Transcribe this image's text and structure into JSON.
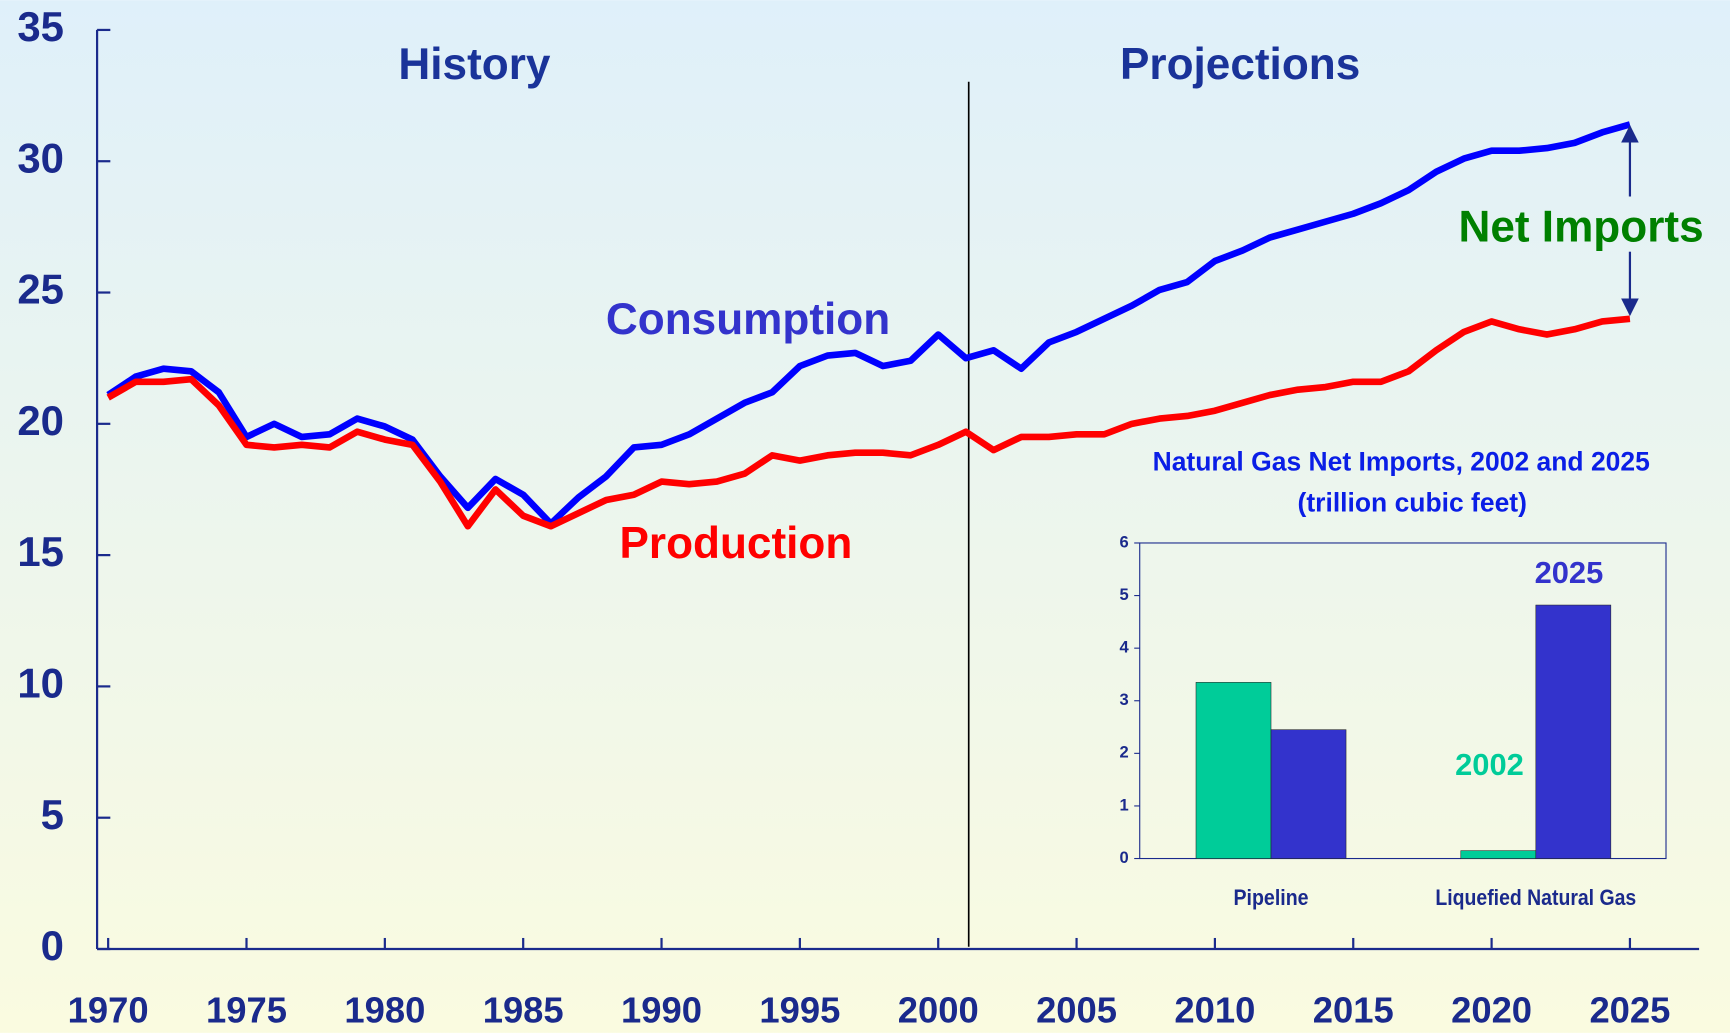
{
  "chart_data": [
    {
      "type": "line",
      "annotations": [
        "History",
        "Projections",
        "Consumption",
        "Production",
        "Net Imports"
      ],
      "x": [
        1970,
        1971,
        1972,
        1973,
        1974,
        1975,
        1976,
        1977,
        1978,
        1979,
        1980,
        1981,
        1982,
        1983,
        1984,
        1985,
        1986,
        1987,
        1988,
        1989,
        1990,
        1991,
        1992,
        1993,
        1994,
        1995,
        1996,
        1997,
        1998,
        1999,
        2000,
        2001,
        2002,
        2003,
        2004,
        2005,
        2006,
        2007,
        2008,
        2009,
        2010,
        2011,
        2012,
        2013,
        2014,
        2015,
        2016,
        2017,
        2018,
        2019,
        2020,
        2021,
        2022,
        2023,
        2024,
        2025
      ],
      "series": [
        {
          "name": "Consumption",
          "color": "#0000ff",
          "values": [
            21.1,
            21.8,
            22.1,
            22.0,
            21.2,
            19.5,
            20.0,
            19.5,
            19.6,
            20.2,
            19.9,
            19.4,
            18.0,
            16.8,
            17.9,
            17.3,
            16.2,
            17.2,
            18.0,
            19.1,
            19.2,
            19.6,
            20.2,
            20.8,
            21.2,
            22.2,
            22.6,
            22.7,
            22.2,
            22.4,
            23.4,
            22.5,
            22.8,
            22.1,
            23.1,
            23.5,
            24.0,
            24.5,
            25.1,
            25.4,
            26.2,
            26.6,
            27.1,
            27.4,
            27.7,
            28.0,
            28.4,
            28.9,
            29.6,
            30.1,
            30.4,
            30.4,
            30.5,
            30.7,
            31.1,
            31.4
          ]
        },
        {
          "name": "Production",
          "color": "#ff0000",
          "values": [
            21.0,
            21.6,
            21.6,
            21.7,
            20.7,
            19.2,
            19.1,
            19.2,
            19.1,
            19.7,
            19.4,
            19.2,
            17.8,
            16.1,
            17.5,
            16.5,
            16.1,
            16.6,
            17.1,
            17.3,
            17.8,
            17.7,
            17.8,
            18.1,
            18.8,
            18.6,
            18.8,
            18.9,
            18.9,
            18.8,
            19.2,
            19.7,
            19.0,
            19.5,
            19.5,
            19.6,
            19.6,
            20.0,
            20.2,
            20.3,
            20.5,
            20.8,
            21.1,
            21.3,
            21.4,
            21.6,
            21.6,
            22.0,
            22.8,
            23.5,
            23.9,
            23.6,
            23.4,
            23.6,
            23.9,
            24.0
          ]
        }
      ],
      "xlim": [
        1969.6,
        2027.5
      ],
      "xticks": [
        1970,
        1975,
        1980,
        1985,
        1990,
        1995,
        2000,
        2005,
        2010,
        2015,
        2020,
        2025
      ],
      "ylim": [
        0,
        35
      ],
      "yticks": [
        0,
        5,
        10,
        15,
        20,
        25,
        30,
        35
      ]
    },
    {
      "type": "bar",
      "title": "Natural Gas Net Imports, 2002 and 2025",
      "subtitle": "(trillion cubic feet)",
      "categories": [
        "Pipeline",
        "Liquefied Natural Gas"
      ],
      "series": [
        {
          "name": "2002",
          "color": "#00cc99",
          "values": [
            3.35,
            0.15
          ]
        },
        {
          "name": "2025",
          "color": "#3333cc",
          "values": [
            2.45,
            4.82
          ]
        }
      ],
      "ylim": [
        0,
        6
      ],
      "yticks": [
        0,
        1,
        2,
        3,
        4,
        5,
        6
      ]
    }
  ]
}
